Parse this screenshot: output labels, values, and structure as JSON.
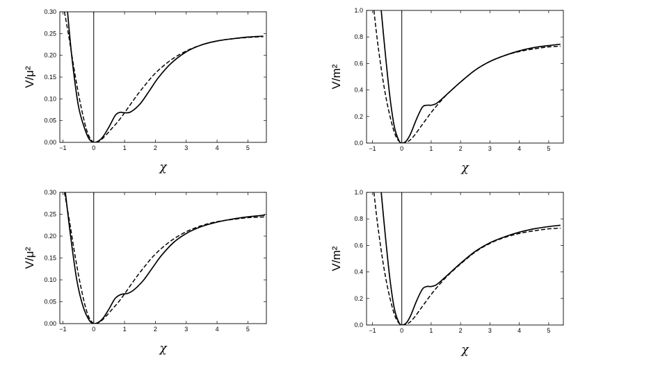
{
  "chart_data": [
    {
      "type": "line",
      "xlabel": "χ",
      "ylabel": "V/μ²",
      "xlim": [
        -1.1,
        5.6
      ],
      "ylim": [
        0,
        0.3
      ],
      "xticks": [
        -1,
        0,
        1,
        2,
        3,
        4,
        5
      ],
      "xtick_labels": [
        "−1",
        "0",
        "1",
        "2",
        "3",
        "4",
        "5"
      ],
      "yticks": [
        0,
        0.05,
        0.1,
        0.15,
        0.2,
        0.25,
        0.3
      ],
      "ytick_labels": [
        "0.00",
        "0.05",
        "0.10",
        "0.15",
        "0.20",
        "0.25",
        "0.30"
      ],
      "vertical_line_x": 0,
      "series": [
        {
          "style": "solid",
          "x": [
            -0.85,
            -0.7,
            -0.5,
            -0.3,
            -0.15,
            0,
            0.15,
            0.3,
            0.5,
            0.7,
            0.85,
            1.0,
            1.2,
            1.5,
            1.8,
            2.1,
            2.5,
            3.0,
            3.5,
            4.0,
            4.5,
            5.0,
            5.5
          ],
          "y": [
            0.3,
            0.19,
            0.085,
            0.033,
            0.008,
            0,
            0.003,
            0.013,
            0.036,
            0.062,
            0.069,
            0.068,
            0.07,
            0.088,
            0.118,
            0.149,
            0.181,
            0.208,
            0.224,
            0.233,
            0.238,
            0.242,
            0.244
          ]
        },
        {
          "style": "dashed",
          "x": [
            -0.95,
            -0.8,
            -0.6,
            -0.4,
            -0.2,
            0,
            0.2,
            0.4,
            0.6,
            0.8,
            1.0,
            1.3,
            1.6,
            2.0,
            2.5,
            3.0,
            3.5,
            4.0,
            4.5,
            5.0,
            5.5
          ],
          "y": [
            0.3,
            0.24,
            0.153,
            0.078,
            0.022,
            0,
            0.004,
            0.017,
            0.033,
            0.049,
            0.068,
            0.098,
            0.126,
            0.159,
            0.189,
            0.21,
            0.224,
            0.233,
            0.238,
            0.241,
            0.243
          ]
        }
      ]
    },
    {
      "type": "line",
      "xlabel": "χ",
      "ylabel": "V/m²",
      "xlim": [
        -1.2,
        5.5
      ],
      "ylim": [
        0,
        1.0
      ],
      "xticks": [
        -1,
        0,
        1,
        2,
        3,
        4,
        5
      ],
      "xtick_labels": [
        "−1",
        "0",
        "1",
        "2",
        "3",
        "4",
        "5"
      ],
      "yticks": [
        0,
        0.2,
        0.4,
        0.6,
        0.8,
        1.0
      ],
      "ytick_labels": [
        "0.0",
        "0.2",
        "0.4",
        "0.6",
        "0.8",
        "1.0"
      ],
      "vertical_line_x": 0,
      "series": [
        {
          "style": "solid",
          "x": [
            -0.7,
            -0.55,
            -0.4,
            -0.25,
            -0.1,
            0,
            0.15,
            0.3,
            0.5,
            0.7,
            0.85,
            1.0,
            1.15,
            1.3,
            1.6,
            2.0,
            2.5,
            3.0,
            3.5,
            4.0,
            4.5,
            5.0,
            5.4
          ],
          "y": [
            1.0,
            0.65,
            0.34,
            0.12,
            0.02,
            0,
            0.015,
            0.07,
            0.18,
            0.27,
            0.285,
            0.285,
            0.295,
            0.32,
            0.38,
            0.46,
            0.55,
            0.615,
            0.66,
            0.695,
            0.72,
            0.735,
            0.745
          ]
        },
        {
          "style": "dashed",
          "x": [
            -0.95,
            -0.8,
            -0.6,
            -0.4,
            -0.2,
            0,
            0.2,
            0.4,
            0.7,
            1.0,
            1.3,
            1.6,
            2.0,
            2.5,
            3.0,
            3.5,
            4.0,
            4.5,
            5.0,
            5.4
          ],
          "y": [
            1.0,
            0.72,
            0.42,
            0.2,
            0.05,
            0,
            0.01,
            0.05,
            0.14,
            0.23,
            0.31,
            0.38,
            0.46,
            0.55,
            0.615,
            0.66,
            0.69,
            0.71,
            0.725,
            0.73
          ]
        }
      ]
    },
    {
      "type": "line",
      "xlabel": "χ",
      "ylabel": "V/μ²",
      "xlim": [
        -1.1,
        5.6
      ],
      "ylim": [
        0,
        0.3
      ],
      "xticks": [
        -1,
        0,
        1,
        2,
        3,
        4,
        5
      ],
      "xtick_labels": [
        "−1",
        "0",
        "1",
        "2",
        "3",
        "4",
        "5"
      ],
      "yticks": [
        0,
        0.05,
        0.1,
        0.15,
        0.2,
        0.25,
        0.3
      ],
      "ytick_labels": [
        "0.00",
        "0.05",
        "0.10",
        "0.15",
        "0.20",
        "0.25",
        "0.30"
      ],
      "vertical_line_x": 0,
      "series": [
        {
          "style": "solid",
          "x": [
            -0.92,
            -0.75,
            -0.55,
            -0.35,
            -0.15,
            0,
            0.15,
            0.3,
            0.5,
            0.7,
            0.9,
            1.1,
            1.3,
            1.6,
            1.9,
            2.2,
            2.6,
            3.0,
            3.5,
            4.0,
            4.5,
            5.0,
            5.55
          ],
          "y": [
            0.3,
            0.2,
            0.1,
            0.04,
            0.008,
            0,
            0.003,
            0.012,
            0.034,
            0.058,
            0.067,
            0.069,
            0.077,
            0.098,
            0.127,
            0.156,
            0.186,
            0.206,
            0.222,
            0.232,
            0.239,
            0.244,
            0.248
          ]
        },
        {
          "style": "dashed",
          "x": [
            -0.95,
            -0.8,
            -0.6,
            -0.4,
            -0.2,
            0,
            0.2,
            0.4,
            0.6,
            0.8,
            1.0,
            1.3,
            1.6,
            2.0,
            2.5,
            3.0,
            3.5,
            4.0,
            4.5,
            5.0,
            5.55
          ],
          "y": [
            0.3,
            0.24,
            0.153,
            0.078,
            0.022,
            0,
            0.004,
            0.017,
            0.033,
            0.049,
            0.068,
            0.098,
            0.126,
            0.159,
            0.189,
            0.21,
            0.224,
            0.233,
            0.238,
            0.242,
            0.244
          ]
        }
      ]
    },
    {
      "type": "line",
      "xlabel": "χ",
      "ylabel": "V/m²",
      "xlim": [
        -1.2,
        5.5
      ],
      "ylim": [
        0,
        1.0
      ],
      "xticks": [
        -1,
        0,
        1,
        2,
        3,
        4,
        5
      ],
      "xtick_labels": [
        "−1",
        "0",
        "1",
        "2",
        "3",
        "4",
        "5"
      ],
      "yticks": [
        0,
        0.2,
        0.4,
        0.6,
        0.8,
        1.0
      ],
      "ytick_labels": [
        "0.0",
        "0.2",
        "0.4",
        "0.6",
        "0.8",
        "1.0"
      ],
      "vertical_line_x": 0,
      "series": [
        {
          "style": "solid",
          "x": [
            -0.7,
            -0.55,
            -0.4,
            -0.25,
            -0.1,
            0,
            0.15,
            0.3,
            0.5,
            0.7,
            0.85,
            1.0,
            1.15,
            1.3,
            1.6,
            2.0,
            2.5,
            3.0,
            3.5,
            4.0,
            4.5,
            5.0,
            5.4
          ],
          "y": [
            1.0,
            0.65,
            0.34,
            0.12,
            0.02,
            0,
            0.015,
            0.07,
            0.18,
            0.27,
            0.29,
            0.29,
            0.3,
            0.325,
            0.385,
            0.465,
            0.555,
            0.62,
            0.665,
            0.7,
            0.725,
            0.742,
            0.752
          ]
        },
        {
          "style": "dashed",
          "x": [
            -0.95,
            -0.8,
            -0.6,
            -0.4,
            -0.2,
            0,
            0.2,
            0.4,
            0.7,
            1.0,
            1.3,
            1.6,
            2.0,
            2.5,
            3.0,
            3.5,
            4.0,
            4.5,
            5.0,
            5.4
          ],
          "y": [
            1.0,
            0.72,
            0.42,
            0.2,
            0.05,
            0,
            0.01,
            0.05,
            0.14,
            0.23,
            0.31,
            0.38,
            0.46,
            0.55,
            0.615,
            0.66,
            0.69,
            0.71,
            0.725,
            0.73
          ]
        }
      ]
    }
  ]
}
